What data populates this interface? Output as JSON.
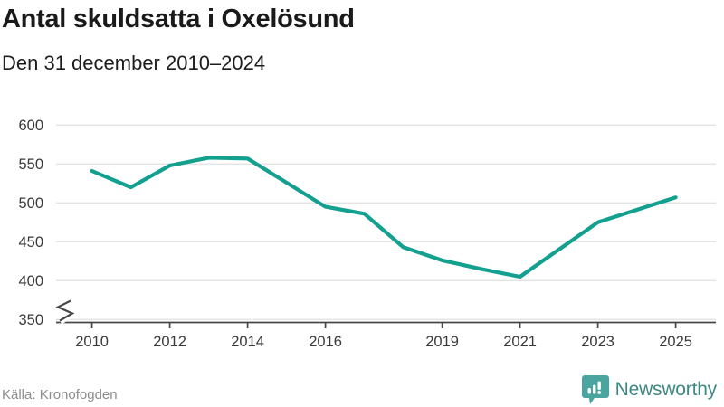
{
  "header": {
    "title": "Antal skuldsatta i Oxelösund",
    "subtitle": "Den 31 december 2010–2024"
  },
  "footer": {
    "source": "Källa: Kronofogden",
    "brand": "Newsworthy"
  },
  "colors": {
    "line": "#13a08f",
    "grid": "#e3e3e3",
    "axis": "#474747",
    "tick_label": "#3a3a3a",
    "title": "#1a1a1a",
    "source_text": "#8d8d8d",
    "logo_badge": "#4aa5a0",
    "logo_text": "#3e8984",
    "background": "#ffffff"
  },
  "chart_data": {
    "type": "line",
    "title": "Antal skuldsatta i Oxelösund",
    "subtitle": "Den 31 december 2010–2024",
    "x_positions": [
      2010,
      2011,
      2012,
      2013,
      2014,
      2015,
      2016,
      2017,
      2018,
      2019,
      2020,
      2021,
      2022,
      2023,
      2024,
      2025
    ],
    "series": [
      {
        "name": "Antal skuldsatta",
        "values": [
          541,
          520,
          548,
          558,
          557,
          526,
          495,
          486,
          443,
          426,
          415,
          405,
          440,
          475,
          491,
          507
        ]
      }
    ],
    "y_ticks": [
      350,
      400,
      450,
      500,
      550,
      600
    ],
    "x_tick_labels": [
      "2010",
      "2012",
      "2014",
      "2016",
      "2019",
      "2021",
      "2023",
      "2025"
    ],
    "x_tick_positions": [
      2010,
      2012,
      2014,
      2016,
      2019,
      2021,
      2023,
      2025
    ],
    "ylim": [
      350,
      600
    ],
    "y_axis_break": true,
    "grid": "horizontal",
    "legend": "none"
  }
}
